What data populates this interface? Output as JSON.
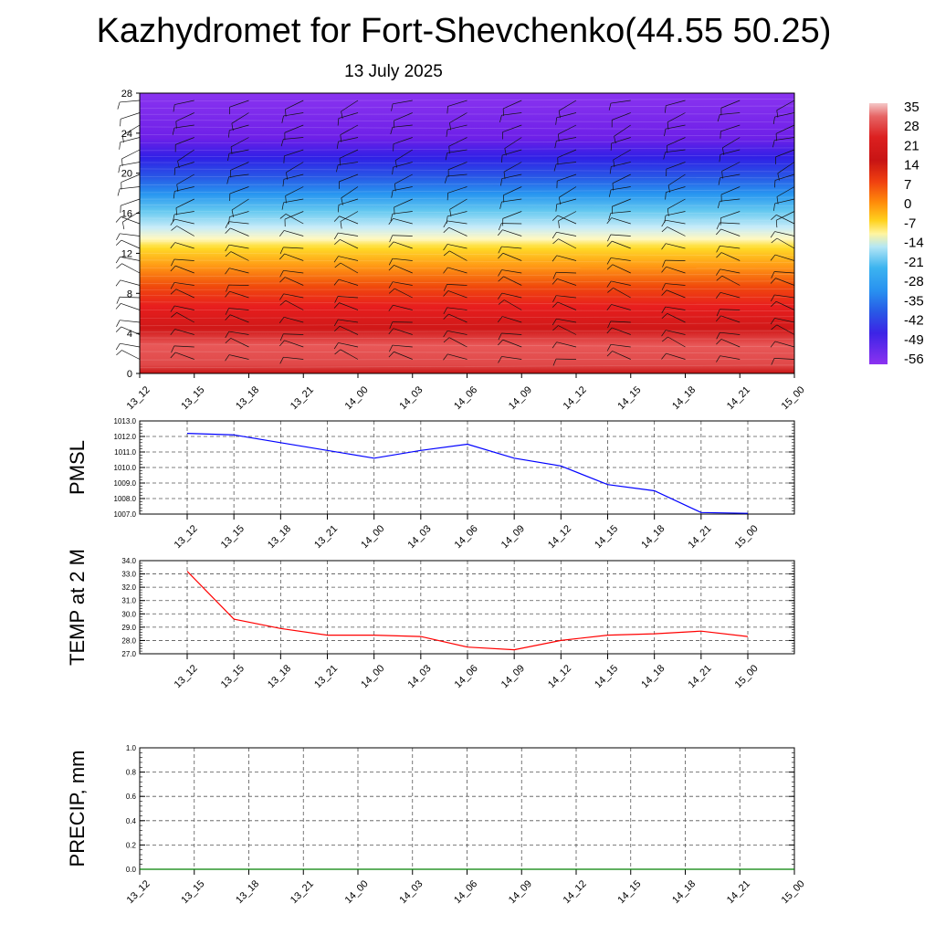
{
  "title": "Kazhydromet for Fort-Shevchenko(44.55 50.25)",
  "subtitle": "13 July 2025",
  "x_ticks": [
    "13_12",
    "13_15",
    "13_18",
    "13_21",
    "14_00",
    "14_03",
    "14_06",
    "14_09",
    "14_12",
    "14_15",
    "14_18",
    "14_21",
    "15_00"
  ],
  "chart_data": [
    {
      "type": "heatmap",
      "y_ticks": [
        0,
        4,
        8,
        12,
        16,
        20,
        24,
        28
      ],
      "ylim": [
        0,
        28
      ],
      "colorbar": {
        "labels": [
          35,
          28,
          21,
          14,
          7,
          0,
          -7,
          -14,
          -21,
          -28,
          -35,
          -42,
          -49,
          -56
        ],
        "colors": [
          "#f0b0b0",
          "#dc2828",
          "#c81414",
          "#f03c0a",
          "#ff8c0a",
          "#ffd21e",
          "#fff5a0",
          "#b4e6f5",
          "#3cb4f0",
          "#2896f0",
          "#2864e6",
          "#3228e6",
          "#6e1ee6",
          "#8c32f0"
        ]
      }
    },
    {
      "type": "line",
      "ylabel": "PMSL",
      "ylim": [
        1007.0,
        1013.0
      ],
      "y_ticks": [
        "1007.0",
        "1008.0",
        "1009.0",
        "1010.0",
        "1011.0",
        "1012.0",
        "1013.0"
      ],
      "color": "#0000ff",
      "values": [
        1012.2,
        1012.1,
        1011.6,
        1011.1,
        1010.6,
        1011.1,
        1011.5,
        1010.6,
        1010.1,
        1008.9,
        1008.5,
        1007.1,
        1007.05
      ]
    },
    {
      "type": "line",
      "ylabel": "TEMP at 2 M",
      "ylim": [
        27.0,
        34.0
      ],
      "y_ticks": [
        "27.0",
        "28.0",
        "29.0",
        "30.0",
        "31.0",
        "32.0",
        "33.0",
        "34.0"
      ],
      "color": "#ff0000",
      "values": [
        33.2,
        29.6,
        28.9,
        28.4,
        28.4,
        28.3,
        27.5,
        27.3,
        28.0,
        28.4,
        28.5,
        28.7,
        28.3
      ]
    },
    {
      "type": "line",
      "ylabel": "PRECIP, mm",
      "ylim": [
        0.0,
        1.0
      ],
      "y_ticks": [
        "0.0",
        "0.2",
        "0.4",
        "0.6",
        "0.8",
        "1.0"
      ],
      "color": "#008000",
      "values": [
        0,
        0,
        0,
        0,
        0,
        0,
        0,
        0,
        0,
        0,
        0,
        0,
        0
      ]
    }
  ]
}
